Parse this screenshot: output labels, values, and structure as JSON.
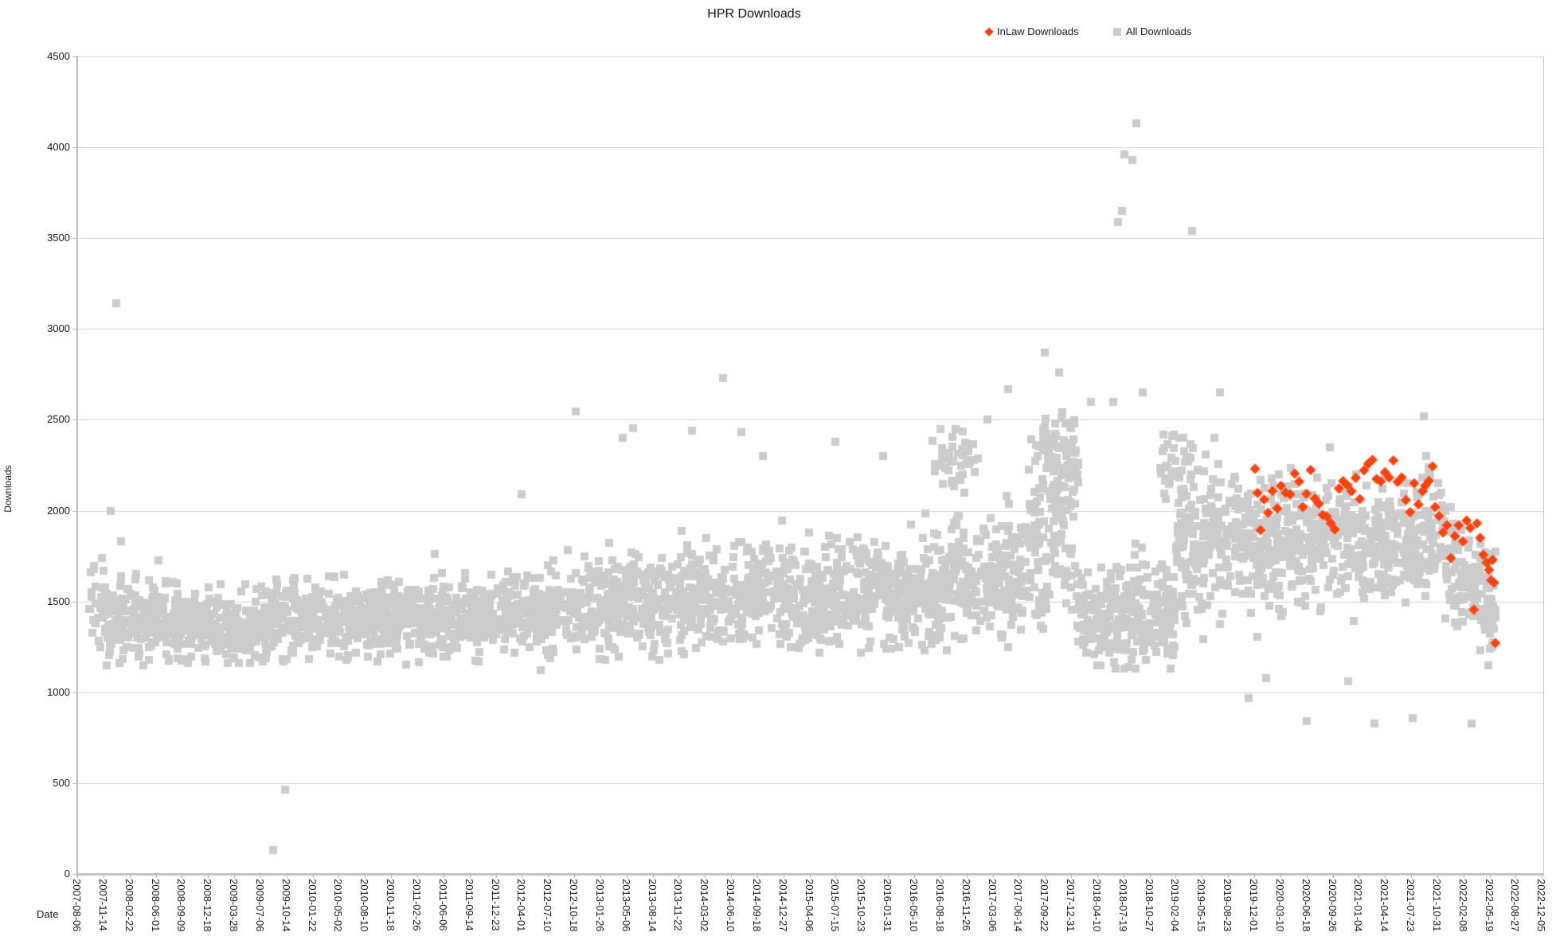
{
  "title": "HPR Downloads",
  "axis": {
    "x_title": "Date",
    "y_title": "Downloads"
  },
  "legend": {
    "items": [
      {
        "label": "InLaw Downloads",
        "marker": "diamond-icon",
        "color": "#ff420e"
      },
      {
        "label": "All Downloads",
        "marker": "square-icon",
        "color": "#cccccc"
      }
    ]
  },
  "chart_data": {
    "type": "scatter",
    "title": "HPR Downloads",
    "xlabel": "Date",
    "ylabel": "Downloads",
    "ylim": [
      0,
      4500
    ],
    "y_tick_step": 500,
    "y_ticks": [
      0,
      500,
      1000,
      1500,
      2000,
      2500,
      3000,
      3500,
      4000,
      4500
    ],
    "grid": "horizontal",
    "legend_position": "top-right",
    "x_start_date": "2007-08-06",
    "x_tick_interval_days": 100,
    "x_tick_labels": [
      "2007-08-06",
      "2007-11-14",
      "2008-02-22",
      "2008-06-01",
      "2008-09-09",
      "2008-12-18",
      "2009-03-28",
      "2009-07-06",
      "2009-10-14",
      "2010-01-22",
      "2010-05-02",
      "2010-08-10",
      "2010-11-18",
      "2011-02-26",
      "2011-06-06",
      "2011-09-14",
      "2011-12-23",
      "2012-04-01",
      "2012-07-10",
      "2012-10-18",
      "2013-01-26",
      "2013-05-06",
      "2013-08-14",
      "2013-11-22",
      "2014-03-02",
      "2014-06-10",
      "2014-09-18",
      "2014-12-27",
      "2015-04-06",
      "2015-07-15",
      "2015-10-23",
      "2016-01-31",
      "2016-05-10",
      "2016-08-18",
      "2016-11-26",
      "2017-03-06",
      "2017-06-14",
      "2017-09-22",
      "2017-12-31",
      "2018-04-10",
      "2018-07-19",
      "2018-10-27",
      "2019-02-04",
      "2019-05-15",
      "2019-08-23",
      "2019-12-01",
      "2020-03-10",
      "2020-06-18",
      "2020-09-26",
      "2021-01-04",
      "2021-04-14",
      "2021-07-23",
      "2021-10-31",
      "2022-02-08",
      "2022-05-19",
      "2022-08-27",
      "2022-12-05"
    ],
    "series": [
      {
        "name": "All Downloads",
        "marker": "square",
        "color": "#cccccc",
        "marker_size_px": 10,
        "summary": "Daily download counts 2007-09 to 2022-06; dense band ~1150-2500 drifting upward over time, with extreme outliers noted explicitly.",
        "seed": 1234,
        "band_segments": [
          {
            "d0": 40,
            "d1": 100,
            "n": 25,
            "c0": 1480,
            "c1": 1480,
            "sd": 150,
            "lo": 1250,
            "hi": 1830
          },
          {
            "d0": 100,
            "d1": 340,
            "n": 180,
            "c0": 1400,
            "c1": 1400,
            "sd": 110,
            "lo": 1150,
            "hi": 2010
          },
          {
            "d0": 340,
            "d1": 760,
            "n": 320,
            "c0": 1370,
            "c1": 1370,
            "sd": 90,
            "lo": 1160,
            "hi": 1780
          },
          {
            "d0": 760,
            "d1": 1180,
            "n": 320,
            "c0": 1400,
            "c1": 1400,
            "sd": 95,
            "lo": 1170,
            "hi": 1800
          },
          {
            "d0": 1180,
            "d1": 1620,
            "n": 330,
            "c0": 1420,
            "c1": 1420,
            "sd": 100,
            "lo": 1150,
            "hi": 1900
          },
          {
            "d0": 1620,
            "d1": 1930,
            "n": 230,
            "c0": 1450,
            "c1": 1450,
            "sd": 110,
            "lo": 1120,
            "hi": 2100
          },
          {
            "d0": 1930,
            "d1": 2330,
            "n": 300,
            "c0": 1490,
            "c1": 1490,
            "sd": 130,
            "lo": 1180,
            "hi": 2250
          },
          {
            "d0": 2330,
            "d1": 2830,
            "n": 370,
            "c0": 1530,
            "c1": 1530,
            "sd": 140,
            "lo": 1200,
            "hi": 2350
          },
          {
            "d0": 2830,
            "d1": 3230,
            "n": 300,
            "c0": 1540,
            "c1": 1540,
            "sd": 140,
            "lo": 1220,
            "hi": 2300
          },
          {
            "d0": 3230,
            "d1": 3630,
            "n": 300,
            "c0": 1570,
            "c1": 1650,
            "sd": 160,
            "lo": 1230,
            "hi": 2400
          },
          {
            "d0": 3270,
            "d1": 3450,
            "n": 40,
            "c0": 2280,
            "c1": 2280,
            "sd": 100,
            "lo": 2100,
            "hi": 2450
          },
          {
            "d0": 3630,
            "d1": 3820,
            "n": 150,
            "c0": 1750,
            "c1": 2050,
            "sd": 250,
            "lo": 1350,
            "hi": 2540
          },
          {
            "d0": 3690,
            "d1": 3830,
            "n": 70,
            "c0": 2330,
            "c1": 2330,
            "sd": 110,
            "lo": 2100,
            "hi": 2510
          },
          {
            "d0": 3820,
            "d1": 3960,
            "n": 110,
            "c0": 1400,
            "c1": 1400,
            "sd": 130,
            "lo": 1150,
            "hi": 1750
          },
          {
            "d0": 3960,
            "d1": 4200,
            "n": 180,
            "c0": 1430,
            "c1": 1430,
            "sd": 140,
            "lo": 1130,
            "hi": 1900
          },
          {
            "d0": 4140,
            "d1": 4270,
            "n": 45,
            "c0": 2250,
            "c1": 2250,
            "sd": 90,
            "lo": 2050,
            "hi": 2420
          },
          {
            "d0": 4200,
            "d1": 4440,
            "n": 190,
            "c0": 1780,
            "c1": 1900,
            "sd": 200,
            "lo": 1250,
            "hi": 2420
          },
          {
            "d0": 4440,
            "d1": 4620,
            "n": 140,
            "c0": 1790,
            "c1": 1790,
            "sd": 180,
            "lo": 1000,
            "hi": 2250
          },
          {
            "d0": 4620,
            "d1": 5230,
            "n": 450,
            "c0": 1840,
            "c1": 1840,
            "sd": 160,
            "lo": 1050,
            "hi": 2300
          },
          {
            "d0": 5230,
            "d1": 5425,
            "n": 140,
            "c0": 1740,
            "c1": 1430,
            "sd": 140,
            "lo": 1150,
            "hi": 2020
          }
        ],
        "outlier_points_day_value": [
          [
            148,
            3140
          ],
          [
            128,
            2000
          ],
          [
            168,
            1830
          ],
          [
            750,
            130
          ],
          [
            795,
            465
          ],
          [
            1700,
            2090
          ],
          [
            1905,
            2545
          ],
          [
            2085,
            2400
          ],
          [
            2125,
            2455
          ],
          [
            2350,
            2440
          ],
          [
            2470,
            2730
          ],
          [
            2540,
            2430
          ],
          [
            2620,
            2300
          ],
          [
            2900,
            2380
          ],
          [
            3080,
            2300
          ],
          [
            3300,
            2450
          ],
          [
            3480,
            2500
          ],
          [
            3560,
            2670
          ],
          [
            3700,
            2870
          ],
          [
            3755,
            2760
          ],
          [
            3875,
            2600
          ],
          [
            3960,
            2600
          ],
          [
            3980,
            3590
          ],
          [
            3995,
            3650
          ],
          [
            4005,
            3960
          ],
          [
            4035,
            3930
          ],
          [
            4048,
            4130
          ],
          [
            4075,
            2650
          ],
          [
            4180,
            1130
          ],
          [
            4230,
            2400
          ],
          [
            4262,
            3540
          ],
          [
            4368,
            2650
          ],
          [
            4480,
            970
          ],
          [
            4545,
            1080
          ],
          [
            4700,
            840
          ],
          [
            4790,
            2350
          ],
          [
            4860,
            1060
          ],
          [
            4960,
            830
          ],
          [
            5105,
            860
          ],
          [
            5150,
            2520
          ],
          [
            5330,
            830
          ],
          [
            5400,
            1240
          ],
          [
            5415,
            1350
          ]
        ]
      },
      {
        "name": "InLaw Downloads",
        "marker": "diamond",
        "color": "#ff420e",
        "marker_size_px": 13,
        "summary": "Subset series from late 2019 to mid 2022; plateau ~1900-2280 then decline to ~1270.",
        "points_day_value": [
          [
            4503,
            2230
          ],
          [
            4513,
            2098
          ],
          [
            4524,
            1893
          ],
          [
            4538,
            2062
          ],
          [
            4553,
            1988
          ],
          [
            4570,
            2108
          ],
          [
            4588,
            2012
          ],
          [
            4602,
            2136
          ],
          [
            4620,
            2099
          ],
          [
            4638,
            2090
          ],
          [
            4655,
            2204
          ],
          [
            4672,
            2160
          ],
          [
            4686,
            2020
          ],
          [
            4700,
            2092
          ],
          [
            4716,
            2224
          ],
          [
            4732,
            2066
          ],
          [
            4748,
            2038
          ],
          [
            4762,
            1976
          ],
          [
            4778,
            1966
          ],
          [
            4793,
            1930
          ],
          [
            4808,
            1896
          ],
          [
            4824,
            2122
          ],
          [
            4840,
            2162
          ],
          [
            4856,
            2140
          ],
          [
            4872,
            2106
          ],
          [
            4888,
            2180
          ],
          [
            4904,
            2064
          ],
          [
            4920,
            2222
          ],
          [
            4936,
            2258
          ],
          [
            4952,
            2280
          ],
          [
            4968,
            2174
          ],
          [
            4984,
            2160
          ],
          [
            5000,
            2212
          ],
          [
            5016,
            2182
          ],
          [
            5032,
            2276
          ],
          [
            5048,
            2158
          ],
          [
            5064,
            2182
          ],
          [
            5080,
            2058
          ],
          [
            5096,
            1992
          ],
          [
            5112,
            2150
          ],
          [
            5128,
            2034
          ],
          [
            5144,
            2106
          ],
          [
            5155,
            2138
          ],
          [
            5168,
            2164
          ],
          [
            5182,
            2243
          ],
          [
            5192,
            2020
          ],
          [
            5207,
            1971
          ],
          [
            5222,
            1880
          ],
          [
            5237,
            1919
          ],
          [
            5252,
            1738
          ],
          [
            5267,
            1860
          ],
          [
            5282,
            1919
          ],
          [
            5298,
            1831
          ],
          [
            5312,
            1945
          ],
          [
            5326,
            1905
          ],
          [
            5340,
            1455
          ],
          [
            5352,
            1930
          ],
          [
            5364,
            1850
          ],
          [
            5376,
            1757
          ],
          [
            5388,
            1713
          ],
          [
            5398,
            1674
          ],
          [
            5406,
            1617
          ],
          [
            5412,
            1730
          ],
          [
            5417,
            1604
          ],
          [
            5422,
            1271
          ]
        ]
      }
    ]
  }
}
